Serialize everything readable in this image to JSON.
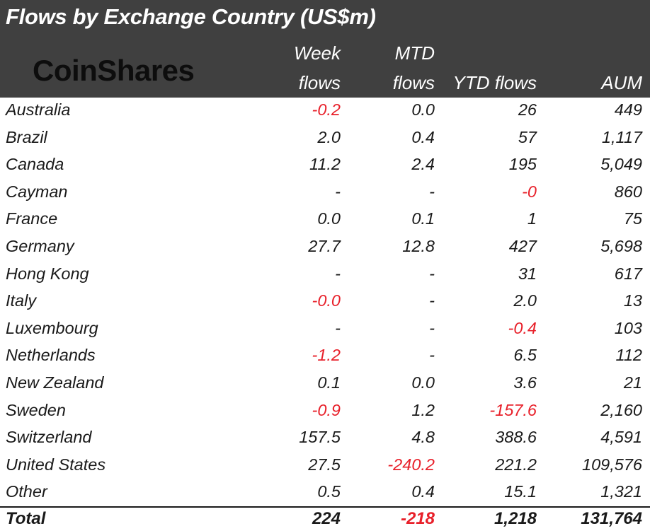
{
  "title": "Flows by Exchange Country (US$m)",
  "logo_text": "CoinShares",
  "columns": {
    "week": [
      "Week",
      "flows"
    ],
    "mtd": [
      "MTD",
      "flows"
    ],
    "ytd": "YTD flows",
    "aum": "AUM"
  },
  "rows": [
    {
      "country": "Australia",
      "week": "-0.2",
      "mtd": "0.0",
      "ytd": "26",
      "aum": "449"
    },
    {
      "country": "Brazil",
      "week": "2.0",
      "mtd": "0.4",
      "ytd": "57",
      "aum": "1,117"
    },
    {
      "country": "Canada",
      "week": "11.2",
      "mtd": "2.4",
      "ytd": "195",
      "aum": "5,049"
    },
    {
      "country": "Cayman",
      "week": "-",
      "mtd": "-",
      "ytd": "-0",
      "aum": "860"
    },
    {
      "country": "France",
      "week": "0.0",
      "mtd": "0.1",
      "ytd": "1",
      "aum": "75"
    },
    {
      "country": "Germany",
      "week": "27.7",
      "mtd": "12.8",
      "ytd": "427",
      "aum": "5,698"
    },
    {
      "country": "Hong Kong",
      "week": "-",
      "mtd": "-",
      "ytd": "31",
      "aum": "617"
    },
    {
      "country": "Italy",
      "week": "-0.0",
      "mtd": "-",
      "ytd": "2.0",
      "aum": "13"
    },
    {
      "country": "Luxembourg",
      "week": "-",
      "mtd": "-",
      "ytd": "-0.4",
      "aum": "103"
    },
    {
      "country": "Netherlands",
      "week": "-1.2",
      "mtd": "-",
      "ytd": "6.5",
      "aum": "112"
    },
    {
      "country": "New Zealand",
      "week": "0.1",
      "mtd": "0.0",
      "ytd": "3.6",
      "aum": "21"
    },
    {
      "country": "Sweden",
      "week": "-0.9",
      "mtd": "1.2",
      "ytd": "-157.6",
      "aum": "2,160"
    },
    {
      "country": "Switzerland",
      "week": "157.5",
      "mtd": "4.8",
      "ytd": "388.6",
      "aum": "4,591"
    },
    {
      "country": "United States",
      "week": "27.5",
      "mtd": "-240.2",
      "ytd": "221.2",
      "aum": "109,576"
    },
    {
      "country": "Other",
      "week": "0.5",
      "mtd": "0.4",
      "ytd": "15.1",
      "aum": "1,321"
    }
  ],
  "total": {
    "label": "Total",
    "week": "224",
    "mtd": "-218",
    "ytd": "1,218",
    "aum": "131,764"
  },
  "colors": {
    "header_bg": "#404040",
    "negative": "#e8202a",
    "text": "#1a1a1a"
  }
}
